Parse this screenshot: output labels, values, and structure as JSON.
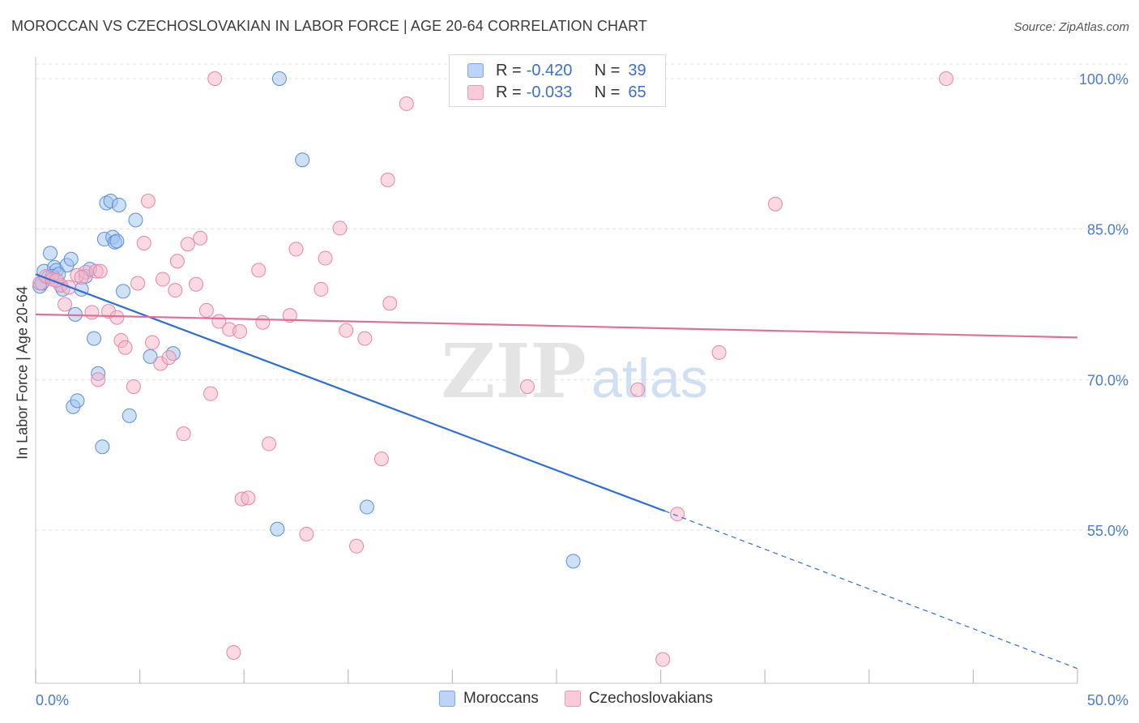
{
  "header": {
    "title": "MOROCCAN VS CZECHOSLOVAKIAN IN LABOR FORCE | AGE 20-64 CORRELATION CHART",
    "source": "Source: ZipAtlas.com"
  },
  "watermark": {
    "zip": "ZIP",
    "atlas": "atlas"
  },
  "legend": {
    "rows": [
      {
        "r_label": "R =",
        "r_value": "-0.420",
        "n_label": "N =",
        "n_value": "39",
        "color": "#9ec2ee"
      },
      {
        "r_label": "R =",
        "r_value": "-0.033",
        "n_label": "N =",
        "n_value": "65",
        "color": "#f5b3c8"
      }
    ]
  },
  "bottom_legend": [
    "Moroccans",
    "Czechoslovakians"
  ],
  "chart_data": {
    "type": "scatter",
    "title": "MOROCCAN VS CZECHOSLOVAKIAN IN LABOR FORCE | AGE 20-64 CORRELATION CHART",
    "xlabel": "",
    "ylabel": "In Labor Force | Age 20-64",
    "xlim": [
      0,
      50
    ],
    "ylim": [
      40,
      101.5
    ],
    "x_tick_labels": [
      "0.0%",
      "50.0%"
    ],
    "y_ticks": [
      55,
      70,
      85,
      100
    ],
    "y_tick_labels": [
      "55.0%",
      "70.0%",
      "85.0%",
      "100.0%"
    ],
    "grid": true,
    "legend_position": "top-center",
    "series": [
      {
        "name": "Moroccans",
        "color": "#9ec2ee",
        "stroke": "#5b8fd6",
        "points": [
          [
            0.2,
            79.3
          ],
          [
            0.4,
            80.8
          ],
          [
            0.6,
            80.2
          ],
          [
            0.7,
            82.6
          ],
          [
            0.9,
            81.2
          ],
          [
            1.0,
            80.9
          ],
          [
            1.2,
            79.4
          ],
          [
            1.3,
            79.0
          ],
          [
            1.5,
            81.4
          ],
          [
            1.7,
            82.0
          ],
          [
            1.8,
            67.3
          ],
          [
            1.9,
            76.5
          ],
          [
            2.0,
            67.9
          ],
          [
            2.2,
            79.0
          ],
          [
            2.4,
            80.3
          ],
          [
            2.6,
            81.0
          ],
          [
            2.8,
            74.1
          ],
          [
            3.0,
            70.6
          ],
          [
            3.2,
            63.3
          ],
          [
            3.3,
            84.0
          ],
          [
            3.4,
            87.6
          ],
          [
            3.6,
            87.8
          ],
          [
            3.7,
            84.2
          ],
          [
            3.8,
            83.7
          ],
          [
            3.9,
            83.8
          ],
          [
            4.0,
            87.4
          ],
          [
            4.2,
            78.8
          ],
          [
            4.5,
            66.4
          ],
          [
            4.8,
            85.9
          ],
          [
            5.5,
            72.3
          ],
          [
            6.6,
            72.6
          ],
          [
            11.6,
            55.1
          ],
          [
            11.7,
            100.0
          ],
          [
            12.8,
            91.9
          ],
          [
            15.9,
            57.3
          ],
          [
            25.8,
            51.9
          ],
          [
            0.3,
            79.6
          ],
          [
            0.8,
            80.3
          ],
          [
            1.1,
            80.5
          ]
        ]
      },
      {
        "name": "Czechoslovakians",
        "color": "#f5b3c8",
        "stroke": "#e586a6",
        "points": [
          [
            0.2,
            79.6
          ],
          [
            0.5,
            80.3
          ],
          [
            0.8,
            80.0
          ],
          [
            1.2,
            79.4
          ],
          [
            1.4,
            77.5
          ],
          [
            1.6,
            79.2
          ],
          [
            2.0,
            80.4
          ],
          [
            2.4,
            80.7
          ],
          [
            2.7,
            76.7
          ],
          [
            2.9,
            80.8
          ],
          [
            3.0,
            70.0
          ],
          [
            3.1,
            80.8
          ],
          [
            3.5,
            76.8
          ],
          [
            3.9,
            76.2
          ],
          [
            4.1,
            73.9
          ],
          [
            4.3,
            73.2
          ],
          [
            4.7,
            69.3
          ],
          [
            4.9,
            79.6
          ],
          [
            5.2,
            83.6
          ],
          [
            5.4,
            87.8
          ],
          [
            5.6,
            73.7
          ],
          [
            6.0,
            71.6
          ],
          [
            6.1,
            80.0
          ],
          [
            6.4,
            72.2
          ],
          [
            6.7,
            78.9
          ],
          [
            6.8,
            81.8
          ],
          [
            7.1,
            64.6
          ],
          [
            7.3,
            83.5
          ],
          [
            7.7,
            79.5
          ],
          [
            7.9,
            84.1
          ],
          [
            8.2,
            76.9
          ],
          [
            8.4,
            68.6
          ],
          [
            8.6,
            100.0
          ],
          [
            8.8,
            75.8
          ],
          [
            9.3,
            75.0
          ],
          [
            9.5,
            42.8
          ],
          [
            9.8,
            74.8
          ],
          [
            9.9,
            58.1
          ],
          [
            10.2,
            58.2
          ],
          [
            10.7,
            80.9
          ],
          [
            10.9,
            75.7
          ],
          [
            11.2,
            63.6
          ],
          [
            12.2,
            76.4
          ],
          [
            12.5,
            83.0
          ],
          [
            13.0,
            54.6
          ],
          [
            13.7,
            79.0
          ],
          [
            13.9,
            82.1
          ],
          [
            14.6,
            85.1
          ],
          [
            14.9,
            74.9
          ],
          [
            15.4,
            53.4
          ],
          [
            15.8,
            74.1
          ],
          [
            16.6,
            62.1
          ],
          [
            16.9,
            89.9
          ],
          [
            17.0,
            77.6
          ],
          [
            17.8,
            97.5
          ],
          [
            23.6,
            69.3
          ],
          [
            24.3,
            100.0
          ],
          [
            28.9,
            69.0
          ],
          [
            30.1,
            42.1
          ],
          [
            30.8,
            56.6
          ],
          [
            32.8,
            72.7
          ],
          [
            35.5,
            87.5
          ],
          [
            43.7,
            100.0
          ],
          [
            1.0,
            79.9
          ],
          [
            2.2,
            80.2
          ]
        ]
      }
    ],
    "trend_lines": [
      {
        "series": "Moroccans",
        "x": [
          0,
          30.2
        ],
        "y": [
          80.5,
          56.9
        ],
        "dashed_to": [
          50,
          41.2
        ],
        "color": "#2c6fd1"
      },
      {
        "series": "Czechoslovakians",
        "x": [
          0,
          50
        ],
        "y": [
          76.5,
          74.2
        ],
        "color": "#e07099"
      }
    ]
  }
}
